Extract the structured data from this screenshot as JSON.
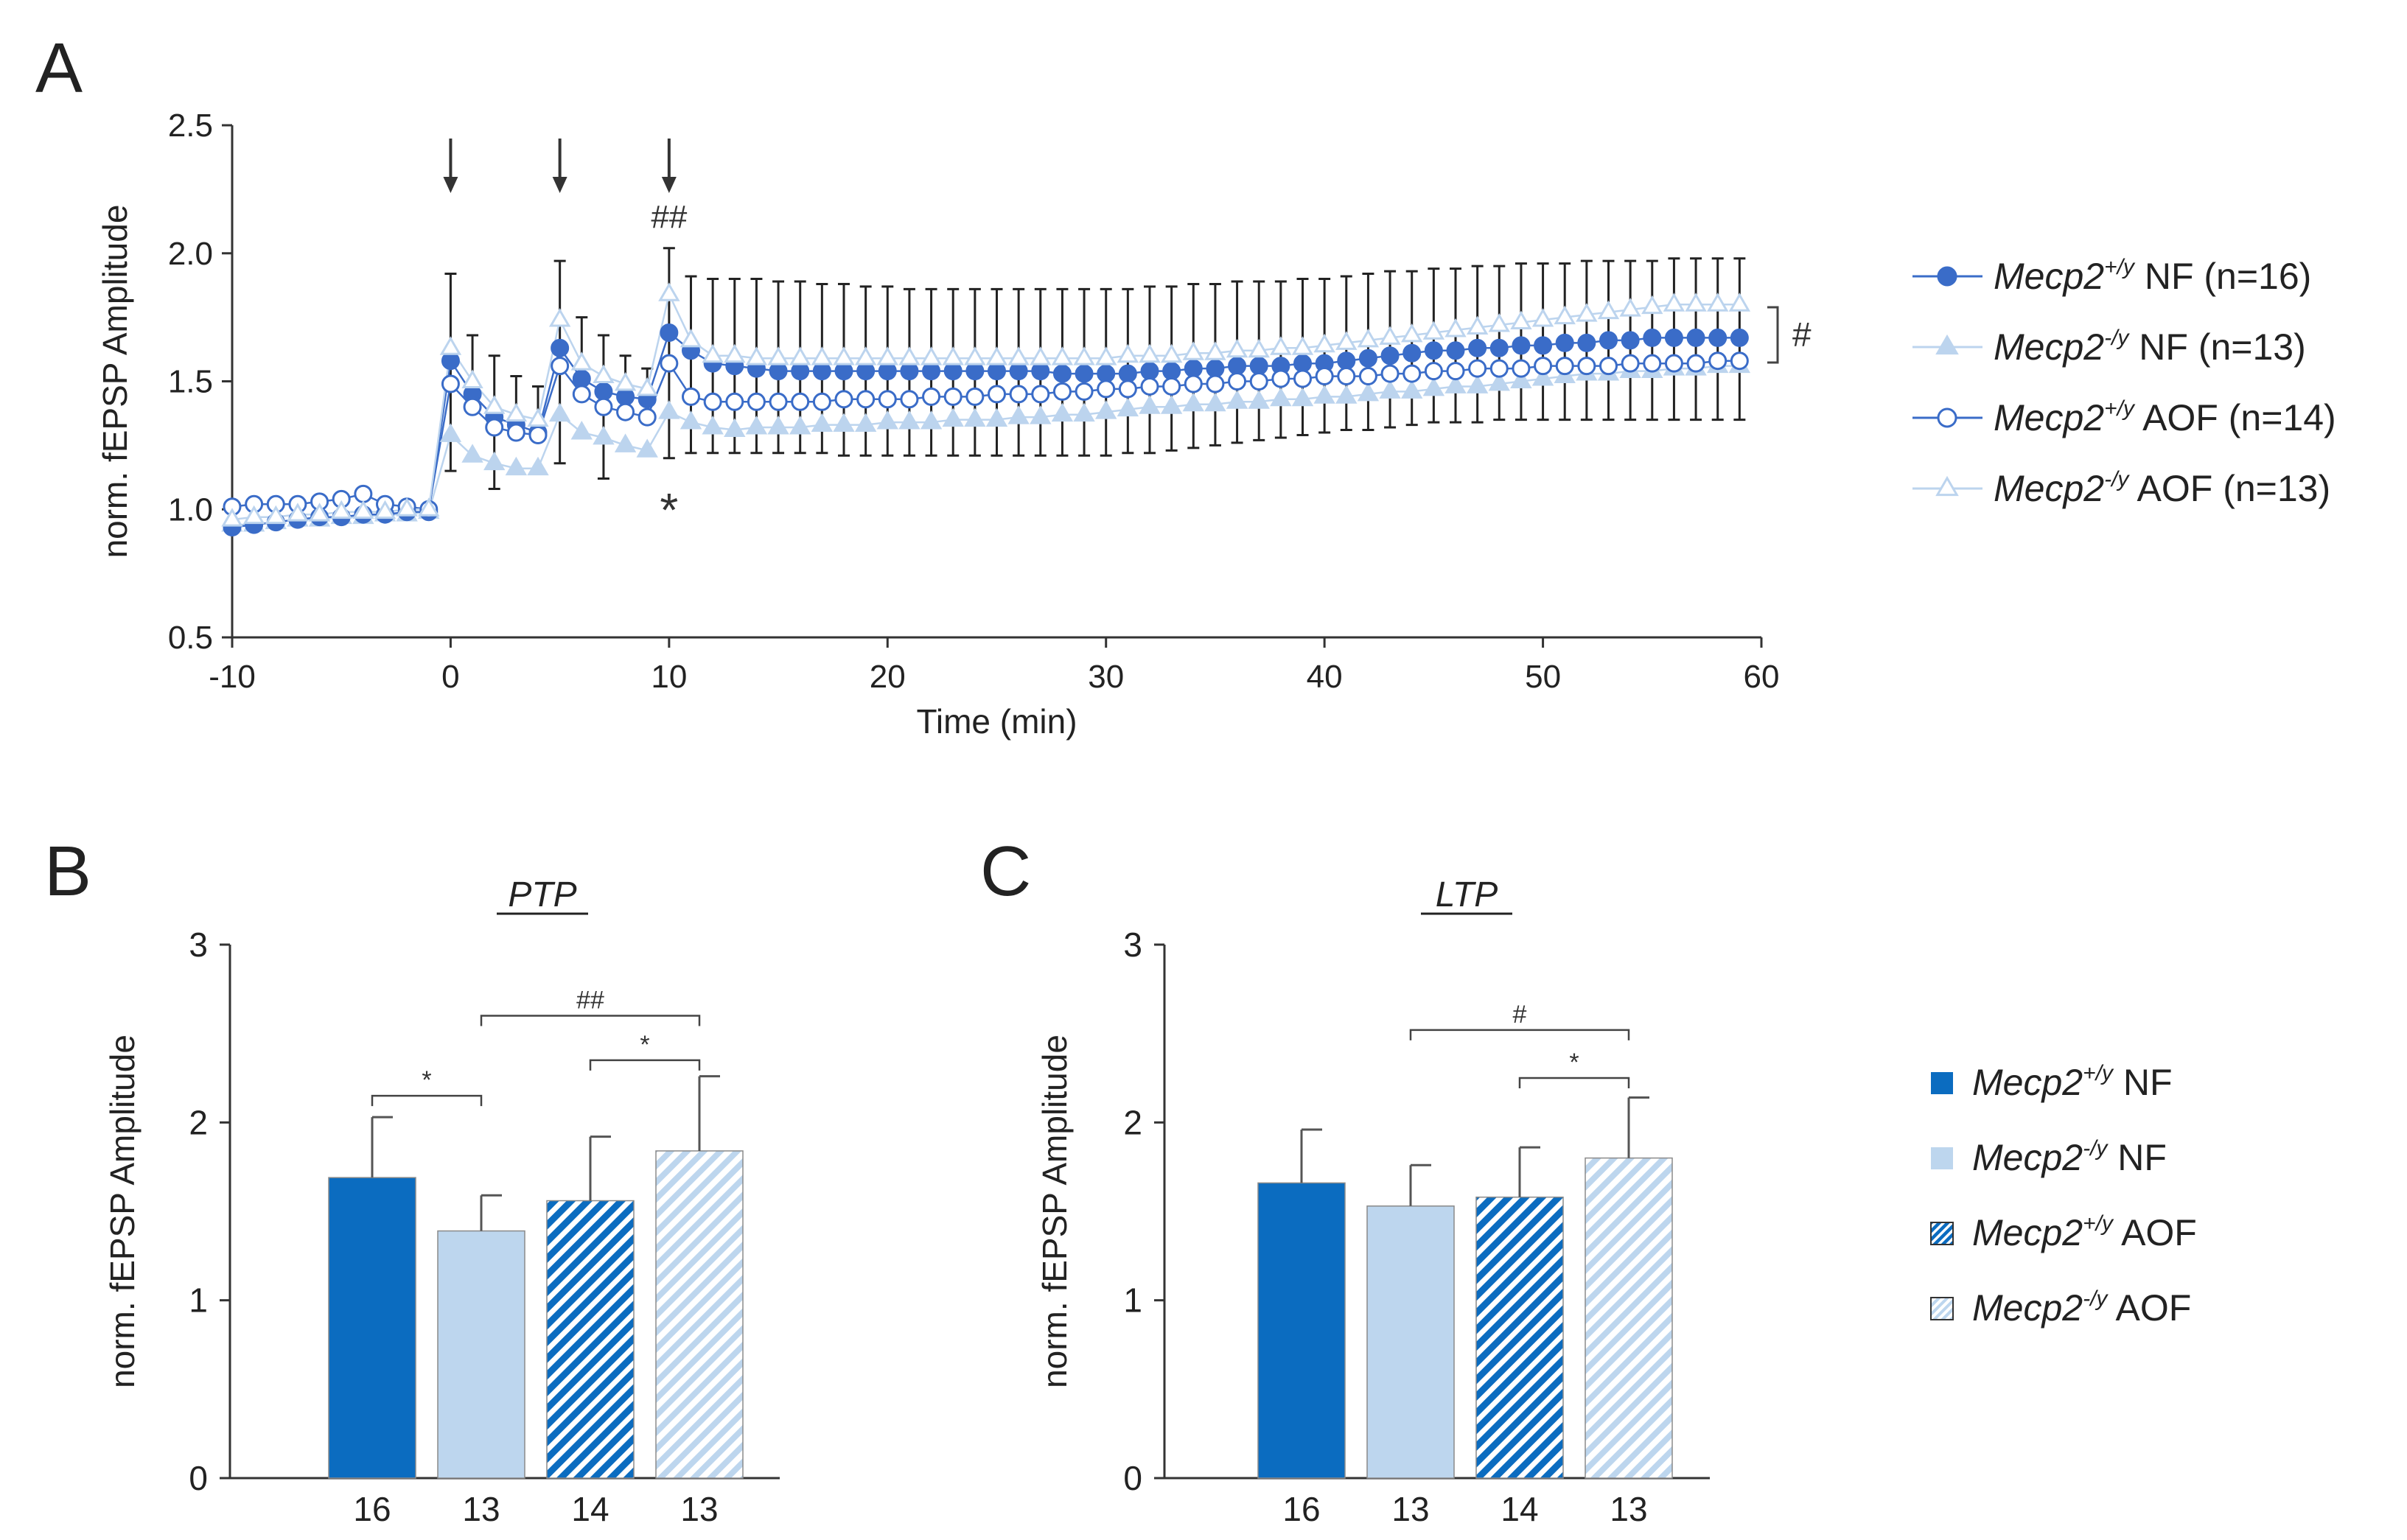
{
  "colors": {
    "dark_blue": "#3a6cc8",
    "light_blue": "#bcd4ee",
    "bar_dark": "#0b6cc0",
    "bar_light": "#bdd6ee",
    "axis": "#333333",
    "text": "#222222"
  },
  "panels": {
    "A": "A",
    "B": "B",
    "C": "C"
  },
  "legend_A": {
    "gene": "Mecp2",
    "items": [
      {
        "sup": "+/y",
        "text": " NF (n=16)",
        "marker": "filled-circle"
      },
      {
        "sup": "-/y",
        "text": " NF (n=13)",
        "marker": "filled-triangle"
      },
      {
        "sup": "+/y",
        "text": " AOF (n=14)",
        "marker": "open-circle"
      },
      {
        "sup": "-/y",
        "text": " AOF (n=13)",
        "marker": "open-triangle"
      }
    ],
    "bracket_label": "#"
  },
  "legend_BC": {
    "gene": "Mecp2",
    "items": [
      {
        "sup": "+/y",
        "text": " NF",
        "style": "solid-dark"
      },
      {
        "sup": "-/y",
        "text": " NF",
        "style": "solid-light"
      },
      {
        "sup": "+/y",
        "text": " AOF",
        "style": "hatched-dark"
      },
      {
        "sup": "-/y",
        "text": " AOF",
        "style": "hatched-light"
      }
    ]
  },
  "chart_data": [
    {
      "id": "A",
      "type": "line",
      "xlabel": "Time (min)",
      "ylabel": "norm. fEPSP Amplitude",
      "xlim": [
        -10,
        60
      ],
      "ylim": [
        0.5,
        2.5
      ],
      "xticks": [
        "-10",
        "0",
        "10",
        "20",
        "30",
        "40",
        "50",
        "60"
      ],
      "yticks": [
        "0.5",
        "1.0",
        "1.5",
        "2.0",
        "2.5"
      ],
      "arrows_at": [
        0,
        5,
        10
      ],
      "annotations": [
        {
          "text": "##",
          "x": 10,
          "y": 2.1
        },
        {
          "text": "*",
          "x": 10,
          "y": 1.05
        }
      ],
      "x": [
        -10,
        -9,
        -8,
        -7,
        -6,
        -5,
        -4,
        -3,
        -2,
        -1,
        0,
        1,
        2,
        3,
        4,
        5,
        6,
        7,
        8,
        9,
        10,
        11,
        12,
        13,
        14,
        15,
        16,
        17,
        18,
        19,
        20,
        21,
        22,
        23,
        24,
        25,
        26,
        27,
        28,
        29,
        30,
        31,
        32,
        33,
        34,
        35,
        36,
        37,
        38,
        39,
        40,
        41,
        42,
        43,
        44,
        45,
        46,
        47,
        48,
        49,
        50,
        51,
        52,
        53,
        54,
        55,
        56,
        57,
        58,
        59
      ],
      "series": [
        {
          "name": "Mecp2+/y NF (n=16)",
          "values": [
            0.93,
            0.94,
            0.95,
            0.96,
            0.97,
            0.97,
            0.98,
            0.98,
            0.99,
            0.99,
            1.58,
            1.45,
            1.36,
            1.33,
            1.3,
            1.63,
            1.51,
            1.46,
            1.44,
            1.43,
            1.69,
            1.62,
            1.57,
            1.56,
            1.55,
            1.54,
            1.54,
            1.54,
            1.54,
            1.54,
            1.54,
            1.54,
            1.54,
            1.54,
            1.54,
            1.54,
            1.54,
            1.54,
            1.53,
            1.53,
            1.53,
            1.53,
            1.54,
            1.54,
            1.55,
            1.55,
            1.56,
            1.56,
            1.56,
            1.57,
            1.57,
            1.58,
            1.59,
            1.6,
            1.61,
            1.62,
            1.62,
            1.63,
            1.63,
            1.64,
            1.64,
            1.65,
            1.65,
            1.66,
            1.66,
            1.67,
            1.67,
            1.67,
            1.67,
            1.67
          ],
          "error_top": [
            null,
            null,
            null,
            null,
            null,
            null,
            null,
            null,
            null,
            null,
            1.92,
            1.68,
            1.6,
            1.52,
            1.48,
            1.97,
            1.75,
            1.68,
            1.6,
            1.55,
            2.02,
            1.91,
            1.9,
            1.9,
            1.9,
            1.89,
            1.89,
            1.88,
            1.88,
            1.87,
            1.87,
            1.86,
            1.86,
            1.86,
            1.86,
            1.86,
            1.86,
            1.86,
            1.86,
            1.86,
            1.86,
            1.86,
            1.87,
            1.87,
            1.88,
            1.88,
            1.89,
            1.89,
            1.89,
            1.9,
            1.9,
            1.91,
            1.92,
            1.93,
            1.93,
            1.94,
            1.94,
            1.95,
            1.95,
            1.96,
            1.96,
            1.96,
            1.97,
            1.97,
            1.97,
            1.97,
            1.98,
            1.98,
            1.98,
            1.98
          ],
          "error_bottom": [
            null,
            null,
            null,
            null,
            null,
            null,
            null,
            null,
            null,
            null,
            1.15,
            null,
            1.08,
            null,
            null,
            1.18,
            null,
            1.12,
            null,
            null,
            1.2,
            1.22,
            1.22,
            1.22,
            1.22,
            1.22,
            1.22,
            1.22,
            1.21,
            1.21,
            1.21,
            1.21,
            1.21,
            1.21,
            1.21,
            1.21,
            1.21,
            1.21,
            1.21,
            1.21,
            1.21,
            1.22,
            1.22,
            1.23,
            1.24,
            1.25,
            1.26,
            1.27,
            1.28,
            1.29,
            1.3,
            1.31,
            1.31,
            1.32,
            1.33,
            1.34,
            1.34,
            1.34,
            1.35,
            1.35,
            1.35,
            1.35,
            1.35,
            1.35,
            1.35,
            1.35,
            1.35,
            1.35,
            1.35,
            1.35
          ]
        },
        {
          "name": "Mecp2-/y NF (n=13)",
          "values": [
            0.94,
            0.94,
            0.95,
            0.96,
            0.96,
            0.97,
            0.97,
            0.98,
            0.98,
            0.99,
            1.29,
            1.21,
            1.18,
            1.16,
            1.16,
            1.37,
            1.3,
            1.28,
            1.25,
            1.23,
            1.38,
            1.34,
            1.32,
            1.31,
            1.32,
            1.32,
            1.32,
            1.33,
            1.33,
            1.33,
            1.34,
            1.34,
            1.34,
            1.35,
            1.35,
            1.35,
            1.36,
            1.36,
            1.37,
            1.37,
            1.38,
            1.39,
            1.4,
            1.4,
            1.41,
            1.41,
            1.42,
            1.42,
            1.43,
            1.43,
            1.44,
            1.44,
            1.45,
            1.46,
            1.46,
            1.47,
            1.48,
            1.48,
            1.49,
            1.5,
            1.51,
            1.52,
            1.53,
            1.53,
            1.54,
            1.54,
            1.55,
            1.55,
            1.56,
            1.56
          ]
        },
        {
          "name": "Mecp2+/y AOF (n=14)",
          "values": [
            1.01,
            1.02,
            1.02,
            1.02,
            1.03,
            1.04,
            1.06,
            1.02,
            1.01,
            1.0,
            1.49,
            1.4,
            1.32,
            1.3,
            1.29,
            1.56,
            1.45,
            1.4,
            1.38,
            1.36,
            1.57,
            1.44,
            1.42,
            1.42,
            1.42,
            1.42,
            1.42,
            1.42,
            1.43,
            1.43,
            1.43,
            1.43,
            1.44,
            1.44,
            1.44,
            1.45,
            1.45,
            1.45,
            1.46,
            1.46,
            1.47,
            1.47,
            1.48,
            1.48,
            1.49,
            1.49,
            1.5,
            1.5,
            1.51,
            1.51,
            1.52,
            1.52,
            1.52,
            1.53,
            1.53,
            1.54,
            1.54,
            1.55,
            1.55,
            1.55,
            1.56,
            1.56,
            1.56,
            1.56,
            1.57,
            1.57,
            1.57,
            1.57,
            1.58,
            1.58
          ]
        },
        {
          "name": "Mecp2-/y AOF (n=13)",
          "values": [
            0.96,
            0.97,
            0.97,
            0.98,
            0.98,
            0.99,
            0.99,
            0.99,
            1.0,
            1.0,
            1.63,
            1.5,
            1.4,
            1.37,
            1.35,
            1.74,
            1.57,
            1.52,
            1.49,
            1.47,
            1.84,
            1.66,
            1.6,
            1.6,
            1.59,
            1.59,
            1.59,
            1.59,
            1.59,
            1.59,
            1.59,
            1.59,
            1.59,
            1.59,
            1.59,
            1.59,
            1.59,
            1.59,
            1.59,
            1.59,
            1.59,
            1.6,
            1.6,
            1.6,
            1.61,
            1.61,
            1.62,
            1.62,
            1.63,
            1.63,
            1.64,
            1.65,
            1.66,
            1.67,
            1.68,
            1.69,
            1.7,
            1.71,
            1.72,
            1.73,
            1.74,
            1.75,
            1.76,
            1.77,
            1.78,
            1.79,
            1.8,
            1.8,
            1.8,
            1.8
          ]
        }
      ]
    },
    {
      "id": "B",
      "type": "bar",
      "title": "PTP",
      "ylabel": "norm. fEPSP Amplitude",
      "ylim": [
        0,
        3
      ],
      "yticks": [
        "0",
        "1",
        "2",
        "3"
      ],
      "categories": [
        "16",
        "13",
        "14",
        "13"
      ],
      "values": [
        1.69,
        1.39,
        1.56,
        1.84
      ],
      "errors": [
        0.34,
        0.2,
        0.36,
        0.42
      ],
      "styles": [
        "solid-dark",
        "solid-light",
        "hatched-dark",
        "hatched-light"
      ],
      "significance": [
        {
          "from": 0,
          "to": 1,
          "label": "*",
          "y": 2.15
        },
        {
          "from": 2,
          "to": 3,
          "label": "*",
          "y": 2.35
        },
        {
          "from": 1,
          "to": 3,
          "label": "##",
          "y": 2.6
        }
      ]
    },
    {
      "id": "C",
      "type": "bar",
      "title": "LTP",
      "ylabel": "norm. fEPSP Amplitude",
      "ylim": [
        0,
        3
      ],
      "yticks": [
        "0",
        "1",
        "2",
        "3"
      ],
      "categories": [
        "16",
        "13",
        "14",
        "13"
      ],
      "values": [
        1.66,
        1.53,
        1.58,
        1.8
      ],
      "errors": [
        0.3,
        0.23,
        0.28,
        0.34
      ],
      "styles": [
        "solid-dark",
        "solid-light",
        "hatched-dark",
        "hatched-light"
      ],
      "significance": [
        {
          "from": 2,
          "to": 3,
          "label": "*",
          "y": 2.25
        },
        {
          "from": 1,
          "to": 3,
          "label": "#",
          "y": 2.52
        }
      ]
    }
  ]
}
